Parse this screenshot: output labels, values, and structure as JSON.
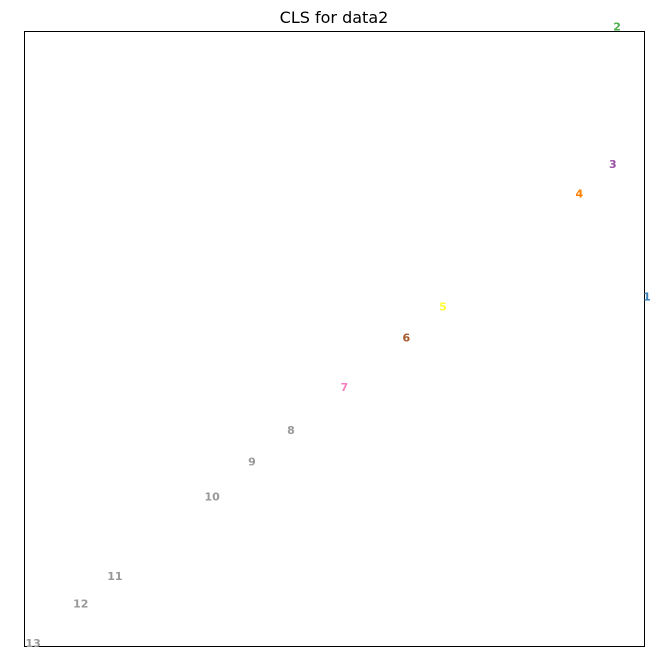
{
  "chart_data": {
    "type": "scatter",
    "title": "CLS for data2",
    "xlabel": "",
    "ylabel": "",
    "grid": false,
    "xlim": [
      0,
      1
    ],
    "ylim": [
      0,
      1
    ],
    "points": [
      {
        "label": "1",
        "x": 1.003,
        "y": 0.568,
        "color": "#377eb8"
      },
      {
        "label": "2",
        "x": 0.955,
        "y": 1.007,
        "color": "#4daf4a"
      },
      {
        "label": "3",
        "x": 0.948,
        "y": 0.784,
        "color": "#984ea3"
      },
      {
        "label": "4",
        "x": 0.894,
        "y": 0.736,
        "color": "#ff7f00"
      },
      {
        "label": "5",
        "x": 0.674,
        "y": 0.552,
        "color": "#ffff33"
      },
      {
        "label": "6",
        "x": 0.615,
        "y": 0.502,
        "color": "#a65628"
      },
      {
        "label": "7",
        "x": 0.515,
        "y": 0.421,
        "color": "#f781bf"
      },
      {
        "label": "8",
        "x": 0.429,
        "y": 0.351,
        "color": "#999999"
      },
      {
        "label": "9",
        "x": 0.366,
        "y": 0.3,
        "color": "#999999"
      },
      {
        "label": "10",
        "x": 0.302,
        "y": 0.243,
        "color": "#999999"
      },
      {
        "label": "11",
        "x": 0.145,
        "y": 0.114,
        "color": "#999999"
      },
      {
        "label": "12",
        "x": 0.09,
        "y": 0.069,
        "color": "#999999"
      },
      {
        "label": "13",
        "x": 0.013,
        "y": 0.005,
        "color": "#999999"
      }
    ]
  }
}
